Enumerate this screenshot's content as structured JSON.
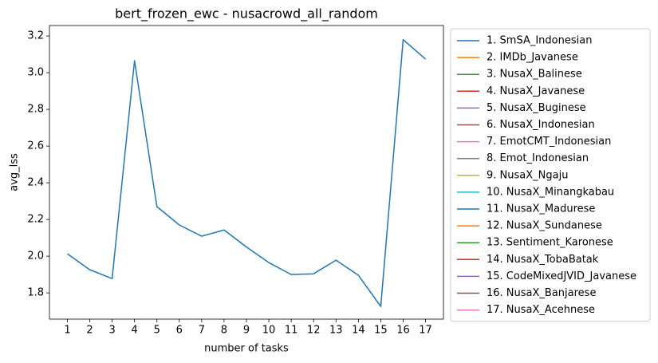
{
  "chart_data": {
    "type": "line",
    "title": "bert_frozen_ewc - nusacrowd_all_random",
    "xlabel": "number of tasks",
    "ylabel": "avg_lss",
    "x": [
      1,
      2,
      3,
      4,
      5,
      6,
      7,
      8,
      9,
      10,
      11,
      12,
      13,
      14,
      15,
      16,
      17
    ],
    "xlim": [
      0.2,
      17.8
    ],
    "xticks": [
      1,
      2,
      3,
      4,
      5,
      6,
      7,
      8,
      9,
      10,
      11,
      12,
      13,
      14,
      15,
      16,
      17
    ],
    "ylim": [
      1.657,
      3.257
    ],
    "yticks": [
      1.8,
      {
        "value": 2.0,
        "label": "2.0"
      },
      2.2,
      2.4,
      2.6,
      2.8,
      {
        "value": 3.0,
        "label": "3.0"
      },
      3.2
    ],
    "legend": "outside right",
    "series": [
      {
        "name": "1. SmSA_Indonesian",
        "color": "#1f77b4",
        "values": [
          2.013,
          1.926,
          1.878,
          3.065,
          2.27,
          2.17,
          2.109,
          2.143,
          2.05,
          1.965,
          1.9,
          1.904,
          1.978,
          1.896,
          1.726,
          3.18,
          3.074
        ]
      },
      {
        "name": "2. IMDb_Javanese",
        "color": "#ff7f0e",
        "values": [
          null,
          null,
          null,
          null,
          null,
          null,
          null,
          null,
          null,
          null,
          null,
          null,
          null,
          null,
          null,
          null,
          null
        ]
      },
      {
        "name": "3. NusaX_Balinese",
        "color": "#2ca02c",
        "values": [
          null,
          null,
          null,
          null,
          null,
          null,
          null,
          null,
          null,
          null,
          null,
          null,
          null,
          null,
          null,
          null,
          null
        ]
      },
      {
        "name": "4. NusaX_Javanese",
        "color": "#d62728",
        "values": [
          null,
          null,
          null,
          null,
          null,
          null,
          null,
          null,
          null,
          null,
          null,
          null,
          null,
          null,
          null,
          null,
          null
        ]
      },
      {
        "name": "5. NusaX_Buginese",
        "color": "#9467bd",
        "values": [
          null,
          null,
          null,
          null,
          null,
          null,
          null,
          null,
          null,
          null,
          null,
          null,
          null,
          null,
          null,
          null,
          null
        ]
      },
      {
        "name": "6. NusaX_Indonesian",
        "color": "#8c564b",
        "values": [
          null,
          null,
          null,
          null,
          null,
          null,
          null,
          null,
          null,
          null,
          null,
          null,
          null,
          null,
          null,
          null,
          null
        ]
      },
      {
        "name": "7. EmotCMT_Indonesian",
        "color": "#e377c2",
        "values": [
          null,
          null,
          null,
          null,
          null,
          null,
          null,
          null,
          null,
          null,
          null,
          null,
          null,
          null,
          null,
          null,
          null
        ]
      },
      {
        "name": "8. Emot_Indonesian",
        "color": "#7f7f7f",
        "values": [
          null,
          null,
          null,
          null,
          null,
          null,
          null,
          null,
          null,
          null,
          null,
          null,
          null,
          null,
          null,
          null,
          null
        ]
      },
      {
        "name": "9. NusaX_Ngaju",
        "color": "#bcbd22",
        "values": [
          null,
          null,
          null,
          null,
          null,
          null,
          null,
          null,
          null,
          null,
          null,
          null,
          null,
          null,
          null,
          null,
          null
        ]
      },
      {
        "name": "10. NusaX_Minangkabau",
        "color": "#17becf",
        "values": [
          null,
          null,
          null,
          null,
          null,
          null,
          null,
          null,
          null,
          null,
          null,
          null,
          null,
          null,
          null,
          null,
          null
        ]
      },
      {
        "name": "11. NusaX_Madurese",
        "color": "#1f77b4",
        "values": [
          null,
          null,
          null,
          null,
          null,
          null,
          null,
          null,
          null,
          null,
          null,
          null,
          null,
          null,
          null,
          null,
          null
        ]
      },
      {
        "name": "12. NusaX_Sundanese",
        "color": "#ff7f0e",
        "values": [
          null,
          null,
          null,
          null,
          null,
          null,
          null,
          null,
          null,
          null,
          null,
          null,
          null,
          null,
          null,
          null,
          null
        ]
      },
      {
        "name": "13. Sentiment_Karonese",
        "color": "#2ca02c",
        "values": [
          null,
          null,
          null,
          null,
          null,
          null,
          null,
          null,
          null,
          null,
          null,
          null,
          null,
          null,
          null,
          null,
          null
        ]
      },
      {
        "name": "14. NusaX_TobaBatak",
        "color": "#d62728",
        "values": [
          null,
          null,
          null,
          null,
          null,
          null,
          null,
          null,
          null,
          null,
          null,
          null,
          null,
          null,
          null,
          null,
          null
        ]
      },
      {
        "name": "15. CodeMixedJVID_Javanese",
        "color": "#9467bd",
        "values": [
          null,
          null,
          null,
          null,
          null,
          null,
          null,
          null,
          null,
          null,
          null,
          null,
          null,
          null,
          null,
          null,
          null
        ]
      },
      {
        "name": "16. NusaX_Banjarese",
        "color": "#8c564b",
        "values": [
          null,
          null,
          null,
          null,
          null,
          null,
          null,
          null,
          null,
          null,
          null,
          null,
          null,
          null,
          null,
          null,
          null
        ]
      },
      {
        "name": "17. NusaX_Acehnese",
        "color": "#e377c2",
        "values": [
          null,
          null,
          null,
          null,
          null,
          null,
          null,
          null,
          null,
          null,
          null,
          null,
          null,
          null,
          null,
          null,
          null
        ]
      }
    ]
  }
}
